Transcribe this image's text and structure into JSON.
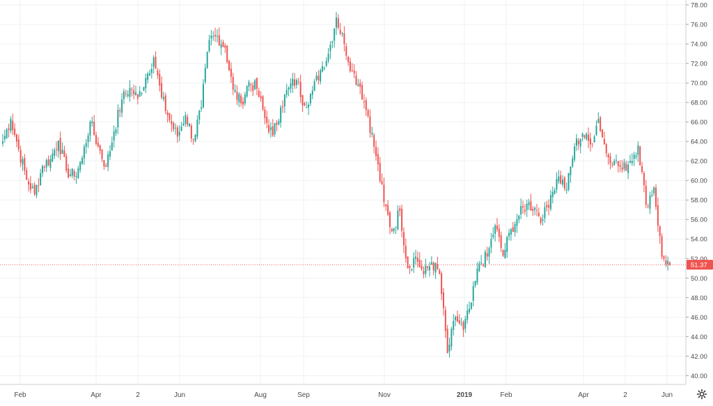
{
  "chart_data": {
    "type": "candlestick",
    "y_axis": {
      "ticks": [
        "40.00",
        "42.00",
        "44.00",
        "46.00",
        "48.00",
        "50.00",
        "52.00",
        "54.00",
        "56.00",
        "58.00",
        "60.00",
        "62.00",
        "64.00",
        "66.00",
        "68.00",
        "70.00",
        "72.00",
        "74.00",
        "76.00",
        "78.00"
      ],
      "ylim": [
        39.1,
        78.5
      ],
      "position": "right"
    },
    "x_axis": {
      "ticks": [
        {
          "label": "Feb",
          "bold": false
        },
        {
          "label": "Apr",
          "bold": false
        },
        {
          "label": "2",
          "bold": false
        },
        {
          "label": "Jun",
          "bold": false
        },
        {
          "label": "Aug",
          "bold": false
        },
        {
          "label": "Sep",
          "bold": false
        },
        {
          "label": "Nov",
          "bold": false
        },
        {
          "label": "2019",
          "bold": true
        },
        {
          "label": "Feb",
          "bold": false
        },
        {
          "label": "Apr",
          "bold": false
        },
        {
          "label": "2",
          "bold": false
        },
        {
          "label": "Jun",
          "bold": false
        }
      ]
    },
    "last_price": {
      "value": 51.37,
      "label": "51.37"
    },
    "grid": true,
    "colors": {
      "up": "#26a69a",
      "down": "#ef5350",
      "grid": "#eef1f3",
      "axis_text": "#4a4a4a",
      "price_line": "#ef5350"
    },
    "anchors": [
      64.0,
      66.3,
      63.2,
      60.1,
      58.6,
      61.5,
      62.2,
      64.1,
      61.0,
      60.4,
      62.3,
      66.0,
      63.5,
      61.4,
      65.0,
      68.3,
      69.5,
      68.4,
      70.5,
      72.6,
      68.5,
      66.2,
      64.5,
      66.7,
      64.2,
      67.5,
      74.4,
      74.8,
      73.6,
      69.3,
      67.9,
      70.1,
      69.4,
      66.4,
      64.6,
      67.5,
      69.5,
      70.3,
      67.7,
      69.2,
      71.3,
      73.0,
      76.7,
      74.0,
      71.2,
      69.6,
      66.6,
      62.5,
      57.8,
      54.8,
      56.9,
      51.0,
      52.2,
      50.4,
      51.6,
      50.4,
      42.3,
      46.0,
      44.7,
      47.5,
      51.5,
      52.2,
      55.4,
      52.3,
      55.0,
      56.4,
      57.6,
      57.2,
      56.0,
      58.5,
      60.4,
      59.1,
      63.5,
      64.8,
      63.7,
      66.3,
      62.8,
      62.0,
      61.1,
      62.0,
      63.6,
      57.5,
      59.3,
      52.2,
      51.37
    ]
  },
  "controls": {
    "settings_icon": "gear-icon"
  }
}
